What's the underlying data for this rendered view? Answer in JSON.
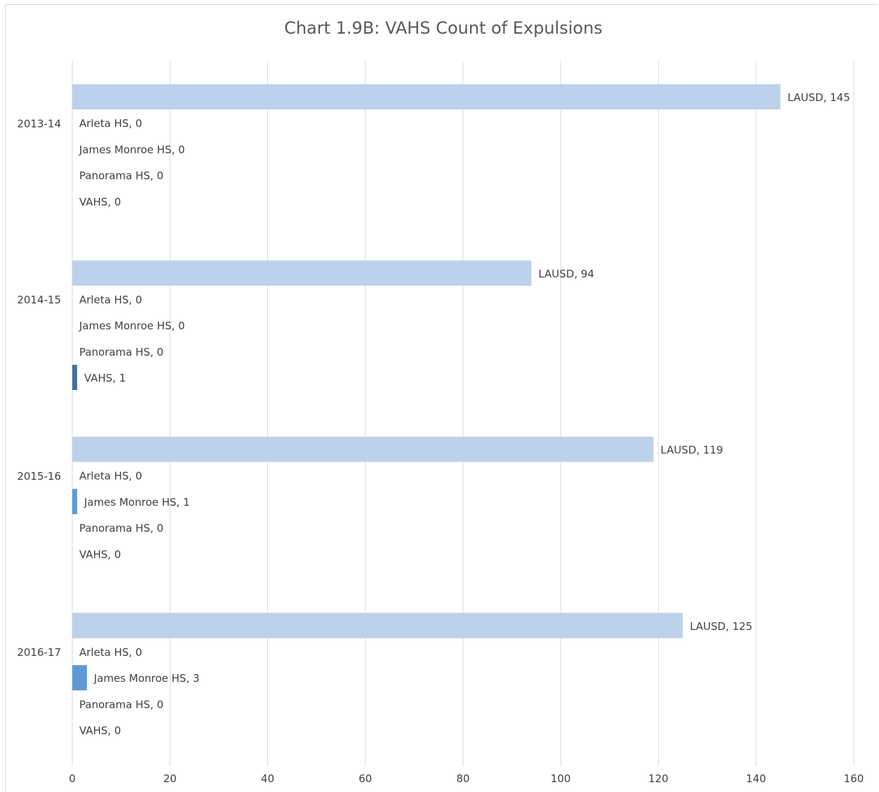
{
  "chart_data": {
    "type": "bar",
    "orientation": "horizontal",
    "title": "Chart 1.9B: VAHS Count of Expulsions",
    "xlabel": "",
    "ylabel": "",
    "xlim": [
      0,
      160
    ],
    "x_ticks": [
      0,
      20,
      40,
      60,
      80,
      100,
      120,
      140,
      160
    ],
    "grid": true,
    "legend": "none",
    "categories": [
      "2013-14",
      "2014-15",
      "2015-16",
      "2016-17"
    ],
    "series": [
      {
        "name": "LAUSD",
        "color": "#bdd1ea",
        "values": [
          145,
          94,
          119,
          125
        ]
      },
      {
        "name": "Arleta HS",
        "color": "#a5a5a5",
        "values": [
          0,
          0,
          0,
          0
        ]
      },
      {
        "name": "James Monroe HS",
        "color": "#5b9bd5",
        "values": [
          0,
          0,
          1,
          3
        ]
      },
      {
        "name": "Panorama HS",
        "color": "#ffc000",
        "values": [
          0,
          0,
          0,
          0
        ]
      },
      {
        "name": "VAHS",
        "color": "#44719f",
        "values": [
          0,
          1,
          0,
          0
        ]
      }
    ],
    "label_separator": ", "
  }
}
